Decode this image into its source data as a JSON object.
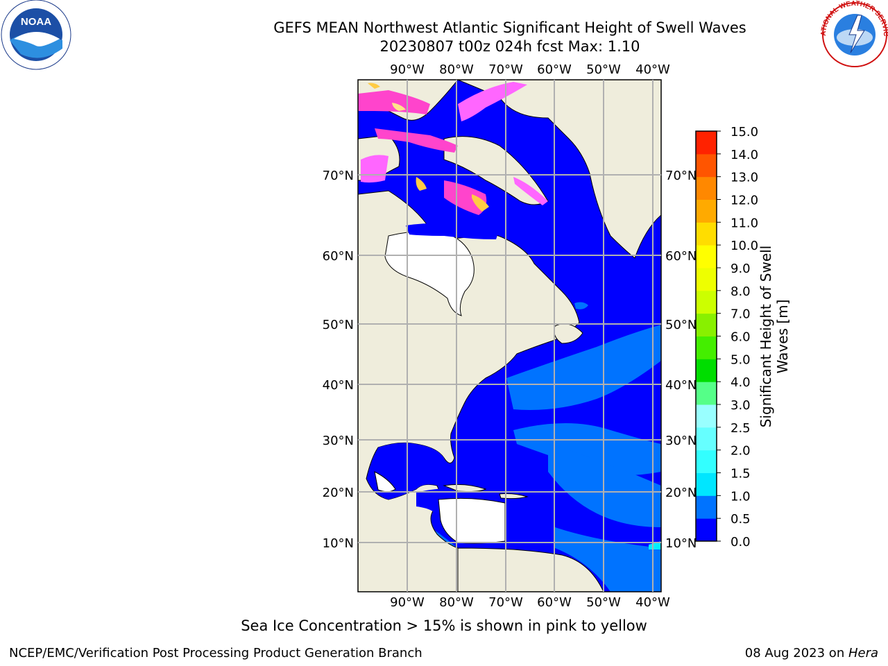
{
  "title": {
    "line1": "GEFS MEAN Northwest Atlantic Significant Height of Swell Waves",
    "line2": "20230807 t00z 024h fcst   Max: 1.10"
  },
  "map": {
    "lon_labels": [
      "90°W",
      "80°W",
      "70°W",
      "60°W",
      "50°W",
      "40°W"
    ],
    "lat_labels": [
      "70°N",
      "60°N",
      "50°N",
      "40°N",
      "30°N",
      "20°N",
      "10°N"
    ],
    "ocean_colors": {
      "low": "#0000ff",
      "mid": "#0073ff",
      "high": "#00f0ff"
    },
    "land_color": "#efeddc",
    "ice_colors": [
      "#ff44cc",
      "#ff66ff",
      "#ffcc44",
      "#ffe38a"
    ]
  },
  "colorbar": {
    "label_line1": "Significant Height of Swell",
    "label_line2": "Waves [m]",
    "ticks": [
      "0.0",
      "0.5",
      "1.0",
      "1.5",
      "2.0",
      "2.5",
      "3.0",
      "4.0",
      "5.0",
      "6.0",
      "7.0",
      "8.0",
      "9.0",
      "10.0",
      "11.0",
      "12.0",
      "13.0",
      "14.0",
      "15.0"
    ],
    "colors": [
      "#0000ff",
      "#0073ff",
      "#00e6ff",
      "#33ffff",
      "#66ffff",
      "#99ffff",
      "#55ff88",
      "#00dd00",
      "#44ee00",
      "#88f000",
      "#ccff00",
      "#eeff00",
      "#ffff00",
      "#ffdd00",
      "#ffaa00",
      "#ff8800",
      "#ff5500",
      "#ff2200"
    ]
  },
  "caption": "Sea Ice Concentration > 15% is shown in pink to yellow",
  "footer": {
    "left": "NCEP/EMC/Verification Post Processing Product Generation Branch",
    "right_prefix": "08 Aug 2023 on ",
    "right_host": "Hera"
  },
  "logos": {
    "noaa_text": "NOAA",
    "nws_text": "NATIONAL WEATHER SERVICE"
  }
}
